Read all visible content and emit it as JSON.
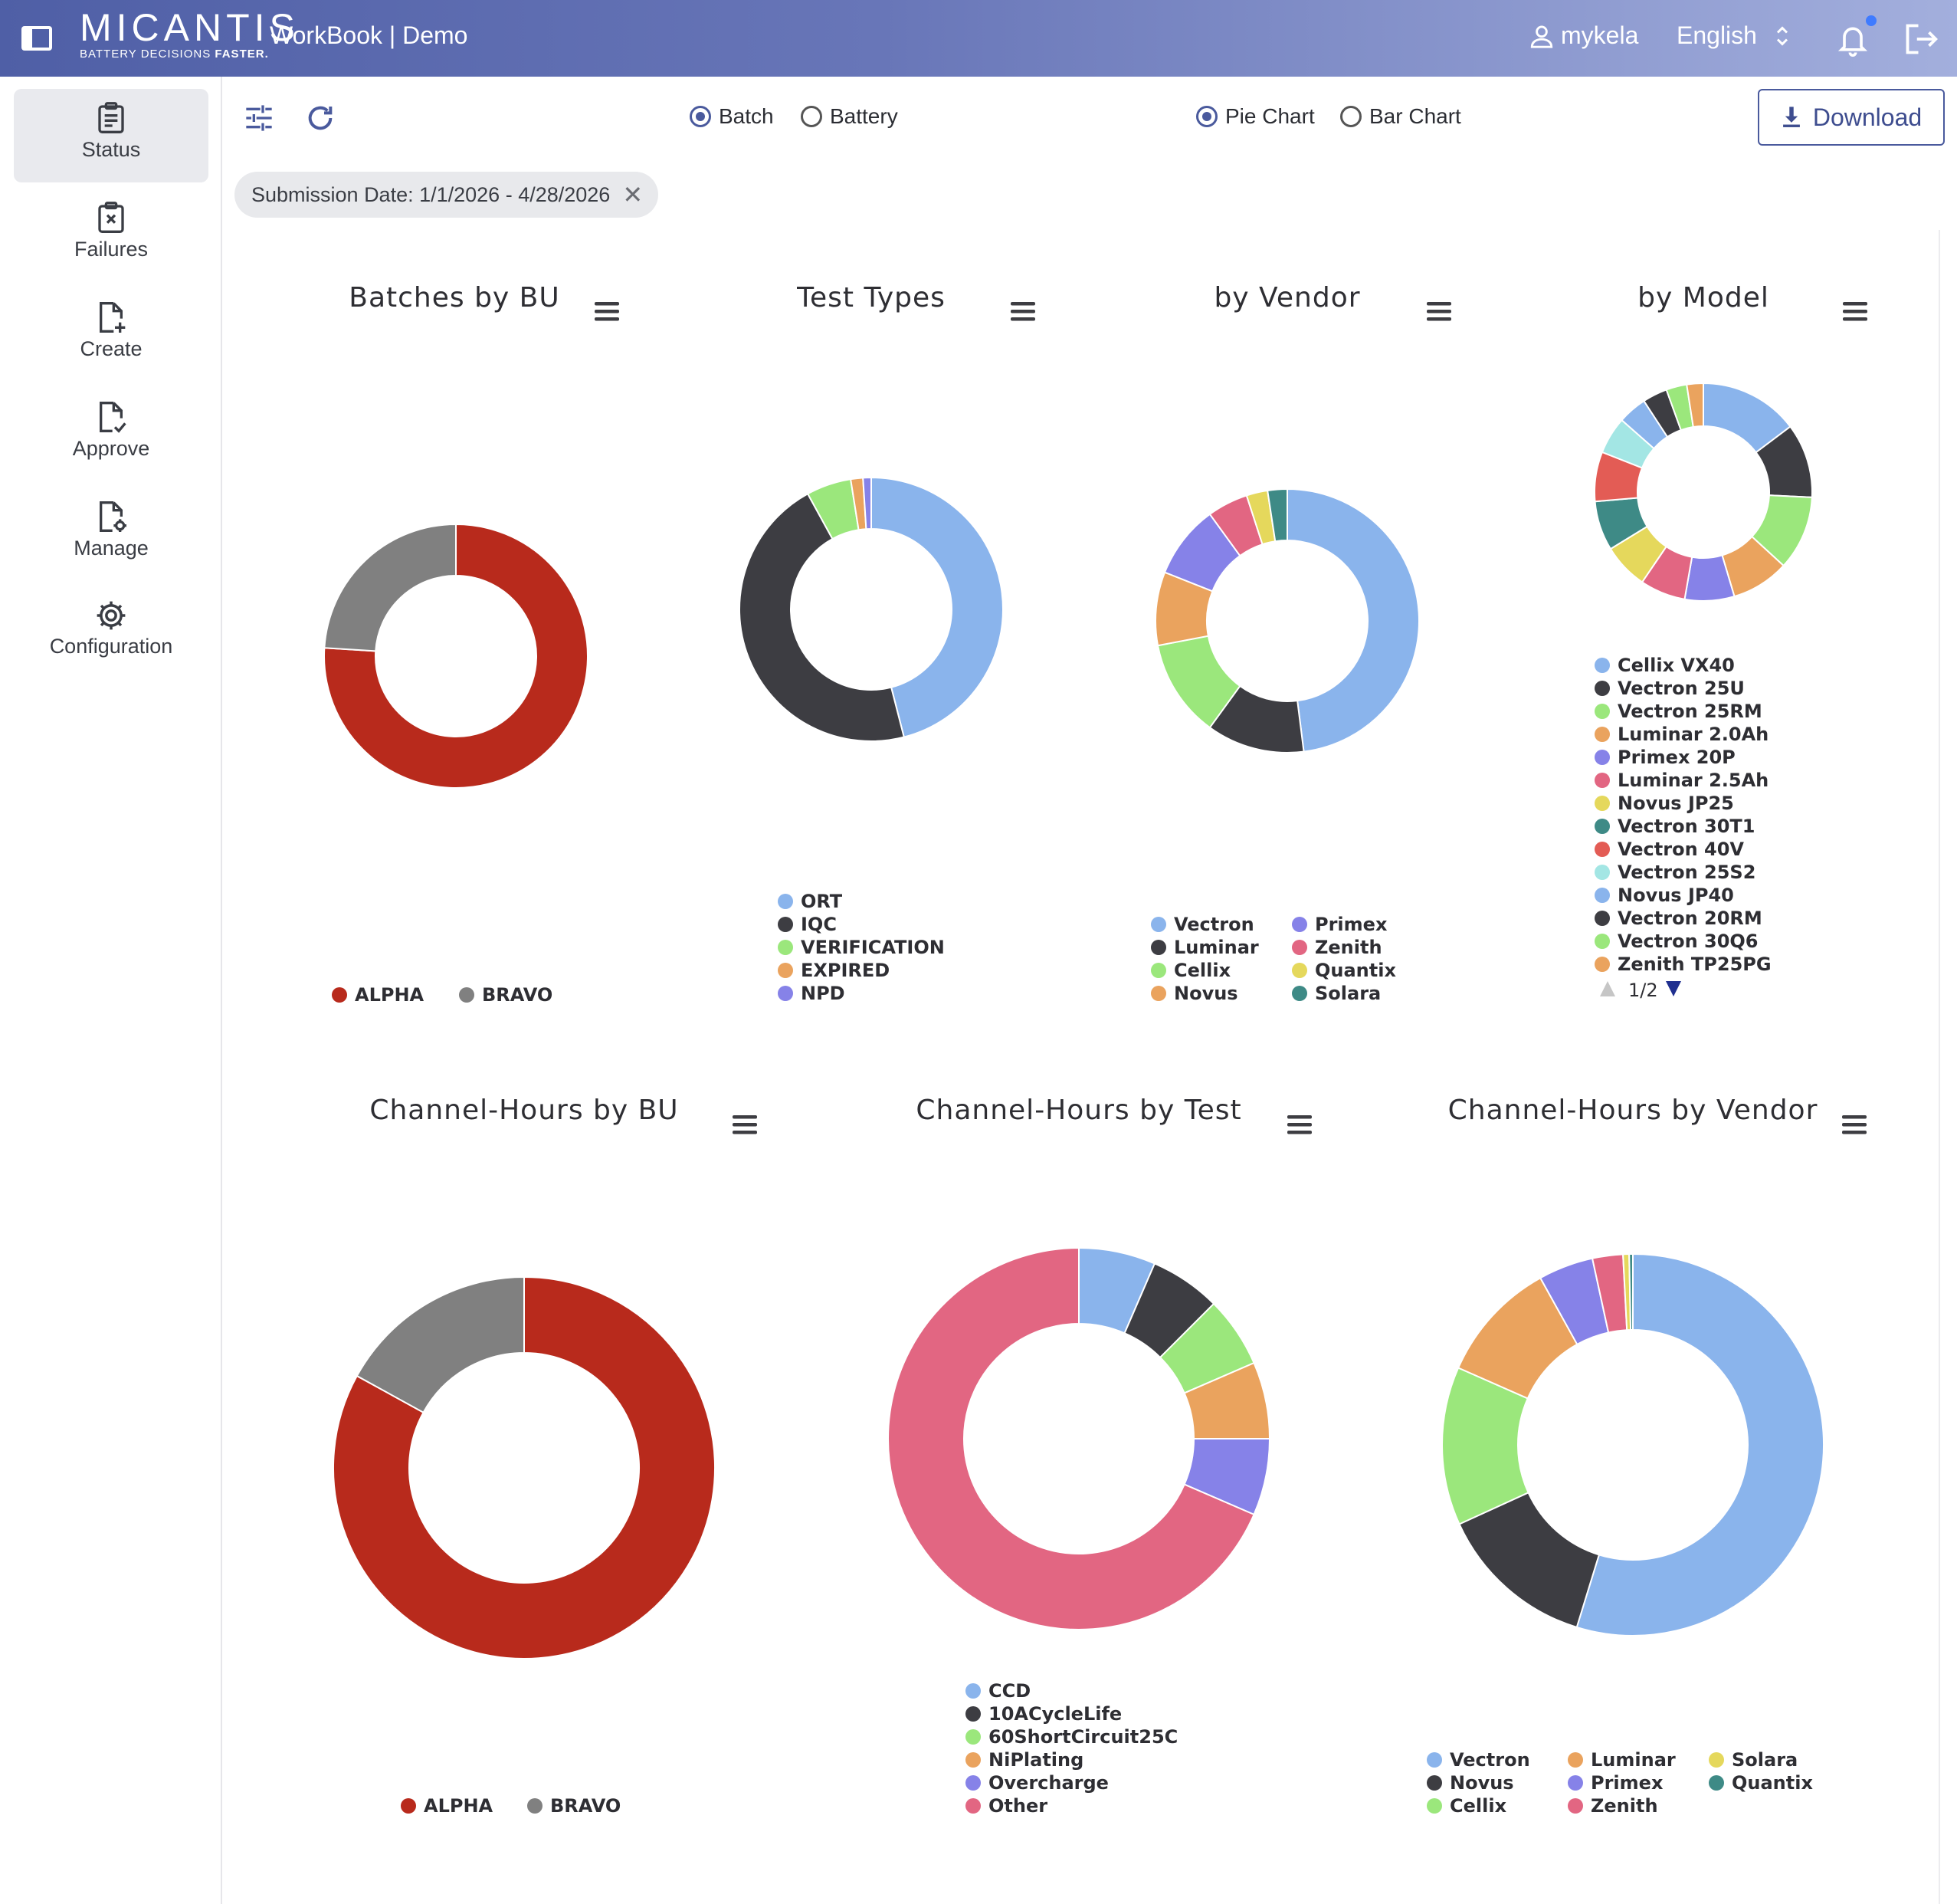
{
  "header": {
    "brand_name": "MICANTIS",
    "brand_tagline": "BATTERY DECISIONS",
    "brand_tagline_bold": "FASTER.",
    "workbook_title": "WorkBook | Demo",
    "username": "mykela",
    "language": "English",
    "notification_dot_color": "#3f7bff"
  },
  "sidebar": {
    "items": [
      {
        "label": "Status",
        "icon": "clipboard-icon",
        "active": true
      },
      {
        "label": "Failures",
        "icon": "clipboard-x-icon",
        "active": false
      },
      {
        "label": "Create",
        "icon": "file-plus-icon",
        "active": false
      },
      {
        "label": "Approve",
        "icon": "file-check-icon",
        "active": false
      },
      {
        "label": "Manage",
        "icon": "file-gear-icon",
        "active": false
      },
      {
        "label": "Configuration",
        "icon": "gear-icon",
        "active": false
      }
    ]
  },
  "toolbar": {
    "filter_icon": "sliders-icon",
    "refresh_icon": "refresh-icon",
    "group_by": {
      "options": [
        "Batch",
        "Battery"
      ],
      "selected": "Batch"
    },
    "chart_type": {
      "options": [
        "Pie Chart",
        "Bar Chart"
      ],
      "selected": "Pie Chart"
    },
    "download_label": "Download",
    "filter_chip": "Submission Date: 1/1/2026 - 4/28/2026"
  },
  "colors": {
    "ALPHA": "#b82a1c",
    "BRAVO": "#808080",
    "blue": "#8ab4ec",
    "dark": "#3d3d42",
    "green": "#9be77c",
    "orange": "#eaa35e",
    "purple": "#8682e8",
    "pink": "#e26682",
    "yellow": "#e5d85c",
    "teal": "#3e8a86",
    "red": "#e35c55",
    "cyan": "#a3e6e4"
  },
  "chart_data": [
    {
      "type": "pie",
      "variant": "donut",
      "title": "Batches by BU",
      "labels": [
        "ALPHA",
        "BRAVO"
      ],
      "values": [
        76,
        24
      ],
      "colors": [
        "#b82a1c",
        "#808080"
      ]
    },
    {
      "type": "pie",
      "variant": "donut",
      "title": "Test Types",
      "labels": [
        "ORT",
        "IQC",
        "VERIFICATION",
        "EXPIRED",
        "NPD"
      ],
      "values": [
        46,
        46,
        5.5,
        1.5,
        1
      ],
      "colors": [
        "#8ab4ec",
        "#3d3d42",
        "#9be77c",
        "#eaa35e",
        "#8682e8"
      ]
    },
    {
      "type": "pie",
      "variant": "donut",
      "title": "by Vendor",
      "labels": [
        "Vectron",
        "Luminar",
        "Cellix",
        "Novus",
        "Primex",
        "Zenith",
        "Quantix",
        "Solara"
      ],
      "values": [
        48,
        12,
        12,
        9,
        9,
        5,
        2.6,
        2.4
      ],
      "colors": [
        "#8ab4ec",
        "#3d3d42",
        "#9be77c",
        "#eaa35e",
        "#8682e8",
        "#e26682",
        "#e5d85c",
        "#3e8a86"
      ]
    },
    {
      "type": "pie",
      "variant": "donut",
      "title": "by Model",
      "labels": [
        "Cellix VX40",
        "Vectron 25U",
        "Vectron 25RM",
        "Luminar 2.0Ah",
        "Primex 20P",
        "Luminar 2.5Ah",
        "Novus JP25",
        "Vectron 30T1",
        "Vectron 40V",
        "Vectron 25S2",
        "Novus JP40",
        "Vectron 20RM",
        "Vectron 30Q6",
        "Zenith TP25PG"
      ],
      "values": [
        12,
        9,
        9,
        7,
        6,
        5.5,
        5.5,
        6,
        6,
        4.5,
        3.5,
        3,
        2.5,
        2
      ],
      "colors": [
        "#8ab4ec",
        "#3d3d42",
        "#9be77c",
        "#eaa35e",
        "#8682e8",
        "#e26682",
        "#e5d85c",
        "#3e8a86",
        "#e35c55",
        "#a3e6e4",
        "#8ab4ec",
        "#3d3d42",
        "#9be77c",
        "#eaa35e"
      ],
      "legend_page": "1/2"
    },
    {
      "type": "pie",
      "variant": "donut",
      "title": "Channel-Hours by BU",
      "labels": [
        "ALPHA",
        "BRAVO"
      ],
      "values": [
        83,
        17
      ],
      "colors": [
        "#b82a1c",
        "#808080"
      ]
    },
    {
      "type": "pie",
      "variant": "donut",
      "title": "Channel-Hours by Test",
      "labels": [
        "CCD",
        "10ACycleLife",
        "60ShortCircuit25C",
        "NiPlating",
        "Overcharge",
        "Other"
      ],
      "values": [
        6.5,
        6,
        6,
        6.5,
        6.5,
        68.5
      ],
      "colors": [
        "#8ab4ec",
        "#3d3d42",
        "#9be77c",
        "#eaa35e",
        "#8682e8",
        "#e26682"
      ]
    },
    {
      "type": "pie",
      "variant": "donut",
      "title": "Channel-Hours by Vendor",
      "labels": [
        "Vectron",
        "Novus",
        "Cellix",
        "Luminar",
        "Primex",
        "Zenith",
        "Solara",
        "Quantix"
      ],
      "values": [
        53,
        13,
        13,
        10,
        4.5,
        2.5,
        0.5,
        0.3
      ],
      "colors": [
        "#8ab4ec",
        "#3d3d42",
        "#9be77c",
        "#eaa35e",
        "#8682e8",
        "#e26682",
        "#e5d85c",
        "#3e8a86"
      ]
    }
  ]
}
